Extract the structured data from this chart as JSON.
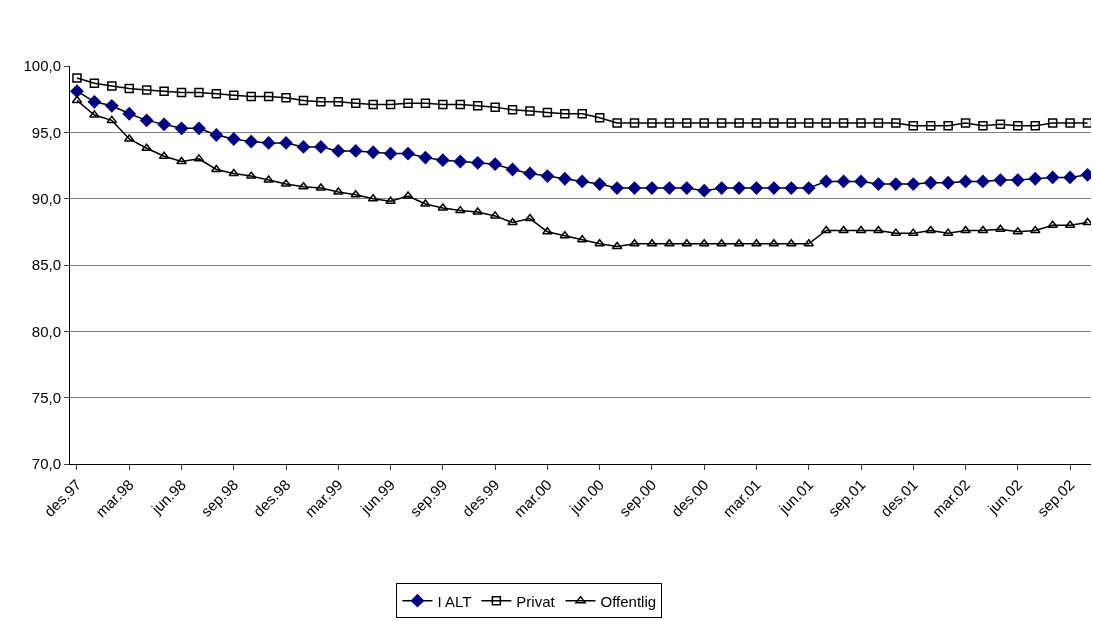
{
  "chart_data": {
    "type": "line",
    "categories": [
      "des.97",
      null,
      null,
      "mar.98",
      null,
      null,
      "jun.98",
      null,
      null,
      "sep.98",
      null,
      null,
      "des.98",
      null,
      null,
      "mar.99",
      null,
      null,
      "jun.99",
      null,
      null,
      "sep.99",
      null,
      null,
      "des.99",
      null,
      null,
      "mar.00",
      null,
      null,
      "jun.00",
      null,
      null,
      "sep.00",
      null,
      null,
      "des.00",
      null,
      null,
      "mar.01",
      null,
      null,
      "jun.01",
      null,
      null,
      "sep.01",
      null,
      null,
      "des.01",
      null,
      null,
      "mar.02",
      null,
      null,
      "jun.02",
      null,
      null,
      "sep.02",
      null
    ],
    "series": [
      {
        "name": "I ALT",
        "color": "#000080",
        "marker": "diamond",
        "values": [
          98.1,
          97.3,
          97.0,
          96.4,
          95.9,
          95.6,
          95.3,
          95.3,
          94.8,
          94.5,
          94.3,
          94.2,
          94.2,
          93.9,
          93.9,
          93.6,
          93.6,
          93.5,
          93.4,
          93.4,
          93.1,
          92.9,
          92.8,
          92.7,
          92.6,
          92.2,
          91.9,
          91.7,
          91.5,
          91.3,
          91.1,
          90.8,
          90.8,
          90.8,
          90.8,
          90.8,
          90.6,
          90.8,
          90.8,
          90.8,
          90.8,
          90.8,
          90.8,
          91.3,
          91.3,
          91.3,
          91.1,
          91.1,
          91.1,
          91.2,
          91.2,
          91.3,
          91.3,
          91.4,
          91.4,
          91.5,
          91.6,
          91.6,
          91.8
        ]
      },
      {
        "name": "Privat",
        "color": "#000000",
        "marker": "square",
        "values": [
          99.1,
          98.7,
          98.5,
          98.3,
          98.2,
          98.1,
          98.0,
          98.0,
          97.9,
          97.8,
          97.7,
          97.7,
          97.6,
          97.4,
          97.3,
          97.3,
          97.2,
          97.1,
          97.1,
          97.2,
          97.2,
          97.1,
          97.1,
          97.0,
          96.9,
          96.7,
          96.6,
          96.5,
          96.4,
          96.4,
          96.1,
          95.7,
          95.7,
          95.7,
          95.7,
          95.7,
          95.7,
          95.7,
          95.7,
          95.7,
          95.7,
          95.7,
          95.7,
          95.7,
          95.7,
          95.7,
          95.7,
          95.7,
          95.5,
          95.5,
          95.5,
          95.7,
          95.5,
          95.6,
          95.5,
          95.5,
          95.7,
          95.7,
          95.7
        ]
      },
      {
        "name": "Offentlig",
        "color": "#000000",
        "marker": "triangle",
        "values": [
          97.4,
          96.3,
          95.9,
          94.5,
          93.8,
          93.2,
          92.8,
          93.0,
          92.2,
          91.9,
          91.7,
          91.4,
          91.1,
          90.9,
          90.8,
          90.5,
          90.3,
          90.0,
          89.8,
          90.2,
          89.6,
          89.3,
          89.1,
          89.0,
          88.7,
          88.2,
          88.5,
          87.5,
          87.2,
          86.9,
          86.6,
          86.4,
          86.6,
          86.6,
          86.6,
          86.6,
          86.6,
          86.6,
          86.6,
          86.6,
          86.6,
          86.6,
          86.6,
          87.6,
          87.6,
          87.6,
          87.6,
          87.4,
          87.4,
          87.6,
          87.4,
          87.6,
          87.6,
          87.7,
          87.5,
          87.6,
          88.0,
          88.0,
          88.2
        ]
      }
    ],
    "ylim": [
      70,
      100
    ],
    "yticks": [
      {
        "value": 70,
        "label": "70,0"
      },
      {
        "value": 75,
        "label": "75,0"
      },
      {
        "value": 80,
        "label": "80,0"
      },
      {
        "value": 85,
        "label": "85,0"
      },
      {
        "value": 90,
        "label": "90,0"
      },
      {
        "value": 95,
        "label": "95,0"
      },
      {
        "value": 100,
        "label": "100,0"
      }
    ],
    "grid": "y",
    "legend": "bottom"
  }
}
